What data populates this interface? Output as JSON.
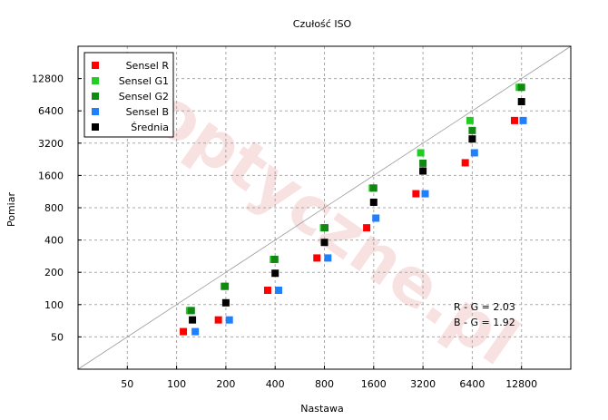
{
  "chart_data": {
    "type": "scatter",
    "title": "Czułość ISO",
    "xlabel": "Nastawa",
    "ylabel": "Pomiar",
    "x_scale": "log2",
    "y_scale": "log2",
    "xlim": [
      25,
      25600
    ],
    "ylim": [
      25,
      25600
    ],
    "x_ticks": [
      "50",
      "100",
      "200",
      "400",
      "800",
      "1600",
      "3200",
      "6400",
      "12800"
    ],
    "y_ticks": [
      "50",
      "100",
      "200",
      "400",
      "800",
      "1600",
      "3200",
      "6400",
      "12800"
    ],
    "grid": true,
    "legend_position": "top-left",
    "reference_line": "y = x",
    "watermark": "optyczne.pl",
    "series": [
      {
        "name": "Sensel R",
        "color": "#ff0000",
        "x": [
          110,
          180,
          360,
          720,
          1450,
          2900,
          5800,
          11600
        ],
        "y": [
          56,
          72,
          136,
          272,
          520,
          1080,
          2100,
          5200
        ]
      },
      {
        "name": "Sensel G1",
        "color": "#22cc22",
        "x": [
          120,
          195,
          390,
          790,
          1570,
          3100,
          6200,
          12400
        ],
        "y": [
          88,
          148,
          264,
          520,
          1220,
          2600,
          5200,
          10600
        ]
      },
      {
        "name": "Sensel G2",
        "color": "#118811",
        "x": [
          123,
          198,
          398,
          805,
          1600,
          3200,
          6400,
          12800
        ],
        "y": [
          88,
          148,
          264,
          520,
          1220,
          2080,
          4200,
          10600
        ]
      },
      {
        "name": "Sensel B",
        "color": "#1e7fff",
        "x": [
          130,
          210,
          420,
          840,
          1650,
          3300,
          6600,
          13100
        ],
        "y": [
          56,
          72,
          136,
          272,
          640,
          1080,
          2600,
          5200
        ]
      },
      {
        "name": "Średnia",
        "color": "#000000",
        "x": [
          125,
          200,
          400,
          800,
          1600,
          3200,
          6400,
          12800
        ],
        "y": [
          72,
          104,
          196,
          380,
          900,
          1760,
          3500,
          7800
        ]
      }
    ],
    "annotations": [
      "R - G = 2.03",
      "B - G = 1.92"
    ]
  }
}
